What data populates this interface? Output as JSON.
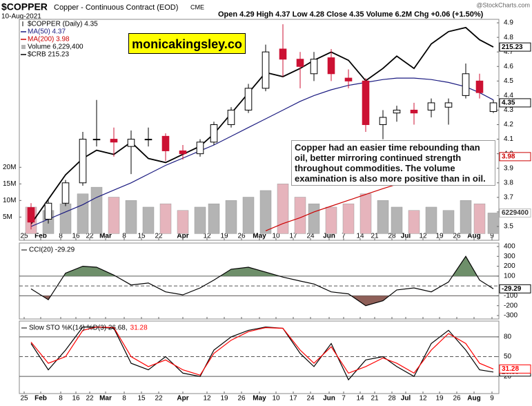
{
  "header": {
    "symbol": "$COPPER",
    "name": "Copper - Continuous Contract (EOD)",
    "exchange": "CME",
    "date": "10-Aug-2021",
    "quote": "Open 4.29 High 4.37 Low 4.28 Close 4.35 Volume 6.2M Chg +0.06 (+1.50%)",
    "source": "@StockCharts.com"
  },
  "chart_data": [
    {
      "type": "candlestick",
      "label": "$COPPER (Daily) 4.35",
      "close_label": "4.35",
      "annotations": [
        "monicakingsley.co",
        "Copper had an easier time rebounding than oil, better mirroring continued strength throughout commodities. The volume examination is also more positive than in oil."
      ],
      "xlim": [
        -1.4,
        137.6
      ],
      "xticks": [
        {
          "value": 0,
          "label": "25"
        },
        {
          "value": 4.8,
          "label": "Feb"
        },
        {
          "value": 10.6,
          "label": "8"
        },
        {
          "value": 15,
          "label": "16"
        },
        {
          "value": 19,
          "label": "22"
        },
        {
          "value": 23.6,
          "label": "Mar"
        },
        {
          "value": 29,
          "label": "8"
        },
        {
          "value": 34,
          "label": "15"
        },
        {
          "value": 39,
          "label": "22"
        },
        {
          "value": 46,
          "label": "Apr"
        },
        {
          "value": 53,
          "label": "12"
        },
        {
          "value": 58,
          "label": "19"
        },
        {
          "value": 63,
          "label": "26"
        },
        {
          "value": 68.2,
          "label": "May"
        },
        {
          "value": 73,
          "label": "10"
        },
        {
          "value": 78,
          "label": "17"
        },
        {
          "value": 83,
          "label": "24"
        },
        {
          "value": 88.4,
          "label": "Jun"
        },
        {
          "value": 92.6,
          "label": "7"
        },
        {
          "value": 97.4,
          "label": "14"
        },
        {
          "value": 101.6,
          "label": "21"
        },
        {
          "value": 106.6,
          "label": "28"
        },
        {
          "value": 110.6,
          "label": "Jul"
        },
        {
          "value": 115.6,
          "label": "12"
        },
        {
          "value": 120.4,
          "label": "19"
        },
        {
          "value": 125.4,
          "label": "26"
        },
        {
          "value": 130.4,
          "label": "Aug"
        },
        {
          "value": 135.6,
          "label": "9"
        }
      ],
      "ylim": [
        3.405,
        4.924
      ],
      "yticks": [
        3.5,
        3.6,
        3.7,
        3.8,
        3.9,
        {
          "value": 4,
          "label": "4.0"
        },
        4.1,
        4.2,
        4.3,
        4.4,
        4.5,
        4.6,
        4.7,
        4.8,
        4.9
      ],
      "y2lim": [
        -2000000,
        64600000
      ],
      "y2ticks": [
        {
          "value": 5000000,
          "label": "5M"
        },
        {
          "value": 10000000,
          "label": "10M"
        },
        {
          "value": 15000000,
          "label": "15M"
        },
        {
          "value": 20000000,
          "label": "20M"
        }
      ],
      "y3lim": [
        168,
        222
      ],
      "up_color": "#000000",
      "down_color": "#cc1133",
      "up_volume_color": "#b4b4b4",
      "down_volume_color": "#e6b4bc",
      "x": [
        2,
        7,
        12,
        17,
        21,
        26,
        31,
        36,
        41,
        46,
        51,
        55,
        60,
        65,
        70,
        75,
        80,
        84,
        89,
        94,
        99,
        104,
        108,
        113,
        118,
        123,
        128,
        132,
        136
      ],
      "open": [
        3.63,
        3.55,
        3.66,
        3.8,
        4.1,
        4.1,
        4.05,
        4.1,
        4.12,
        4.02,
        4.0,
        4.08,
        4.2,
        4.3,
        4.45,
        4.72,
        4.65,
        4.55,
        4.66,
        4.52,
        4.5,
        4.2,
        4.28,
        4.3,
        4.3,
        4.32,
        4.4,
        4.5,
        4.29
      ],
      "high": [
        3.66,
        3.68,
        3.82,
        4.15,
        4.37,
        4.18,
        4.16,
        4.18,
        4.14,
        4.06,
        4.1,
        4.22,
        4.32,
        4.48,
        4.75,
        4.89,
        4.7,
        4.7,
        4.72,
        4.58,
        4.52,
        4.3,
        4.33,
        4.35,
        4.38,
        4.38,
        4.62,
        4.55,
        4.37
      ],
      "low": [
        3.48,
        3.52,
        3.64,
        3.78,
        4.05,
        3.98,
        3.86,
        4.05,
        3.95,
        3.96,
        3.98,
        4.06,
        4.18,
        4.28,
        4.43,
        4.53,
        4.45,
        4.5,
        4.5,
        4.45,
        4.15,
        4.1,
        4.22,
        4.2,
        4.25,
        4.2,
        4.38,
        4.38,
        4.28
      ],
      "close": [
        3.53,
        3.66,
        3.8,
        4.1,
        4.1,
        4.08,
        4.1,
        4.1,
        4.02,
        4.0,
        4.08,
        4.2,
        4.3,
        4.45,
        4.7,
        4.65,
        4.6,
        4.65,
        4.55,
        4.5,
        4.2,
        4.25,
        4.3,
        4.28,
        4.35,
        4.35,
        4.55,
        4.42,
        4.35
      ],
      "series": [
        {
          "name": "MA(50) 4.37",
          "color": "#1a1a80",
          "values": [
            3.5,
            3.55,
            3.6,
            3.65,
            3.7,
            3.75,
            3.8,
            3.86,
            3.92,
            3.97,
            4.02,
            4.06,
            4.12,
            4.18,
            4.24,
            4.3,
            4.36,
            4.4,
            4.44,
            4.47,
            4.49,
            4.51,
            4.52,
            4.52,
            4.51,
            4.49,
            4.46,
            4.42,
            4.37
          ]
        },
        {
          "name": "MA(200) 3.98",
          "color": "#cc0000",
          "last_label": "3.98",
          "values": [
            null,
            null,
            null,
            null,
            null,
            null,
            null,
            null,
            null,
            null,
            null,
            null,
            null,
            null,
            3.47,
            3.52,
            3.56,
            3.6,
            3.64,
            3.68,
            3.72,
            3.76,
            3.79,
            3.82,
            3.86,
            3.89,
            3.92,
            3.95,
            3.98
          ]
        },
        {
          "name": "Volume 6,229,400",
          "color": "#b4b4b4",
          "axis": "y2",
          "last_label": "6229400",
          "values": [
            8000000,
            7000000,
            9000000,
            12000000,
            14000000,
            11000000,
            10000000,
            8000000,
            9000000,
            7000000,
            8000000,
            9000000,
            10000000,
            11000000,
            13000000,
            15000000,
            11000000,
            9000000,
            8000000,
            9000000,
            12000000,
            10000000,
            8000000,
            7000000,
            8000000,
            7000000,
            10000000,
            9000000,
            6229400
          ]
        },
        {
          "name": "$CRB 215.23",
          "color": "#000000",
          "axis": "y3",
          "last_label": "215.23",
          "values": [
            172,
            178,
            184,
            188,
            190,
            189,
            192,
            188,
            187,
            189,
            191,
            194,
            199,
            204,
            209,
            208,
            210,
            212,
            214,
            212,
            207,
            210,
            213,
            210,
            216,
            219,
            220,
            217,
            215.23
          ]
        }
      ]
    },
    {
      "type": "line",
      "legend": [
        "CCI(20) -29.29"
      ],
      "ylim": [
        -335,
        435
      ],
      "yticks": [
        400,
        300,
        200,
        100,
        -100,
        -200,
        -300
      ],
      "levels": [
        100,
        -100
      ],
      "midline": 0,
      "fill_above": "#6e8f6a",
      "fill_below": "#8e5f58",
      "series": [
        {
          "color": "#000000",
          "last_label": "-29.29",
          "values": [
            -30,
            -140,
            130,
            200,
            190,
            110,
            10,
            30,
            -60,
            -90,
            -20,
            60,
            170,
            190,
            140,
            90,
            50,
            20,
            -60,
            -80,
            -200,
            -150,
            -40,
            -20,
            -60,
            40,
            300,
            60,
            -29.29
          ]
        }
      ]
    },
    {
      "type": "line",
      "legend": [
        "Slow STO %K(14) %D(3) 26.68,",
        "31.28"
      ],
      "ylim": [
        -6,
        104
      ],
      "yticks": [
        80,
        50,
        20
      ],
      "levels": [
        80,
        20
      ],
      "midline": 50,
      "series": [
        {
          "color": "#000000",
          "last_label": "26.68",
          "values": [
            70,
            30,
            60,
            95,
            95,
            93,
            40,
            30,
            50,
            25,
            20,
            60,
            80,
            90,
            95,
            93,
            55,
            35,
            70,
            15,
            45,
            50,
            35,
            20,
            70,
            90,
            60,
            30,
            26.68
          ]
        },
        {
          "color": "#ff0000",
          "last_label": "31.28",
          "values": [
            72,
            40,
            50,
            90,
            95,
            94,
            50,
            35,
            45,
            30,
            22,
            55,
            75,
            88,
            94,
            93,
            60,
            40,
            65,
            25,
            35,
            48,
            40,
            25,
            60,
            85,
            70,
            40,
            31.28
          ]
        }
      ]
    }
  ]
}
